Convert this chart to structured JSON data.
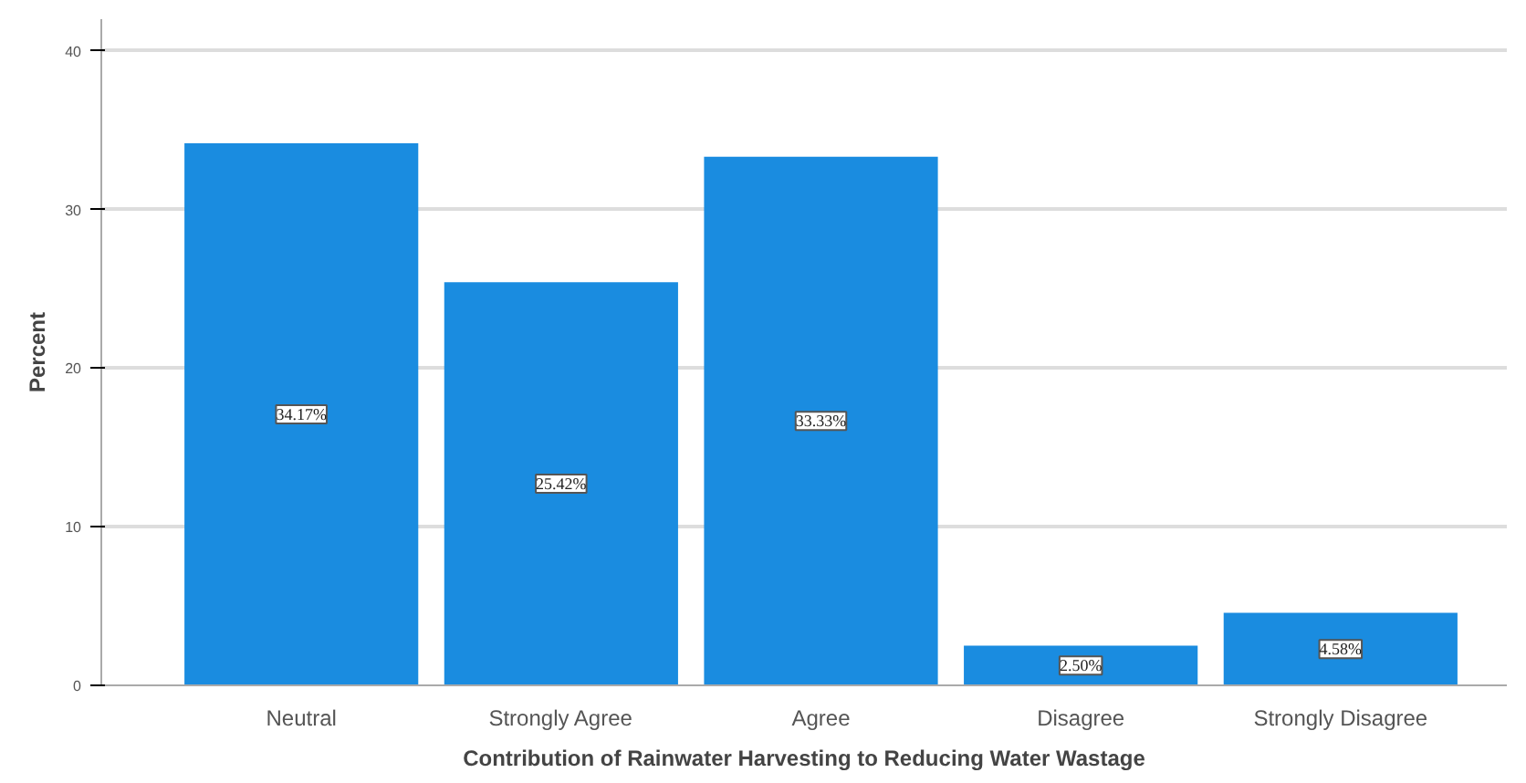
{
  "chart_data": {
    "type": "bar",
    "xlabel": "Contribution of Rainwater Harvesting to Reducing Water Wastage",
    "ylabel": "Percent",
    "categories": [
      "Neutral",
      "Strongly Agree",
      "Agree",
      "Disagree",
      "Strongly Disagree"
    ],
    "values": [
      34.17,
      25.42,
      33.33,
      2.5,
      4.58
    ],
    "value_labels": [
      "34.17%",
      "25.42%",
      "33.33%",
      "2.50%",
      "4.58%"
    ],
    "color": "#1a8ce0",
    "ylim": [
      0,
      42
    ],
    "yticks": [
      0,
      10,
      20,
      30,
      40
    ],
    "grid": "y"
  }
}
